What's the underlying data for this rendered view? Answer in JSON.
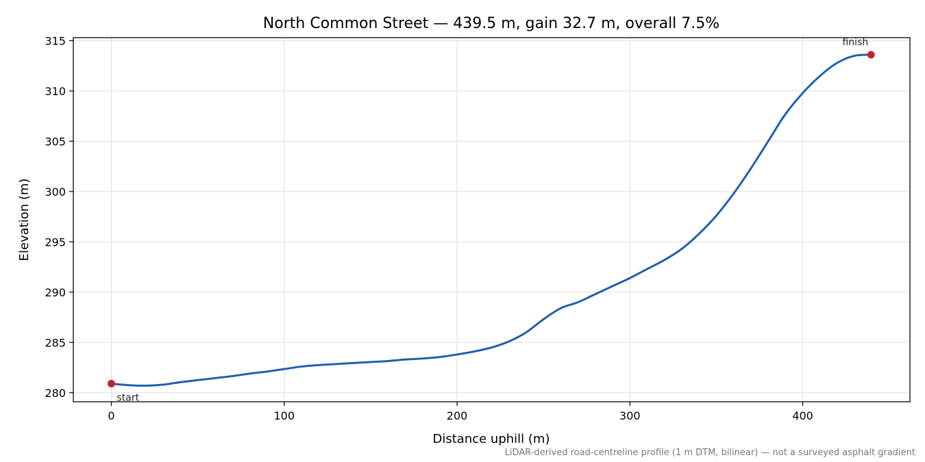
{
  "chart_data": {
    "type": "line",
    "title": "North Common Street — 439.5 m, gain 32.7 m, overall 7.5%",
    "xlabel": "Distance uphill (m)",
    "ylabel": "Elevation (m)",
    "xlim": [
      -22,
      462
    ],
    "ylim": [
      279.1,
      315.3
    ],
    "xticks": [
      0,
      100,
      200,
      300,
      400
    ],
    "yticks": [
      280,
      285,
      290,
      295,
      300,
      305,
      310,
      315
    ],
    "grid": true,
    "color": "#1f5fad",
    "marker_color": "#c8202a",
    "series": [
      {
        "x": [
          0,
          10,
          20,
          30,
          40,
          50,
          60,
          70,
          80,
          90,
          100,
          110,
          120,
          130,
          140,
          150,
          160,
          170,
          180,
          190,
          200,
          210,
          220,
          230,
          240,
          250,
          260,
          270,
          280,
          290,
          300,
          310,
          320,
          330,
          340,
          350,
          360,
          370,
          380,
          390,
          400,
          410,
          420,
          430,
          439.5
        ],
        "y": [
          280.9,
          280.75,
          280.7,
          280.8,
          281.05,
          281.25,
          281.45,
          281.65,
          281.9,
          282.1,
          282.35,
          282.6,
          282.75,
          282.85,
          282.95,
          283.05,
          283.15,
          283.3,
          283.4,
          283.55,
          283.8,
          284.1,
          284.5,
          285.1,
          286.0,
          287.3,
          288.4,
          289.0,
          289.8,
          290.6,
          291.4,
          292.3,
          293.2,
          294.3,
          295.8,
          297.6,
          299.8,
          302.3,
          305.0,
          307.7,
          309.8,
          311.5,
          312.8,
          313.5,
          313.6
        ]
      }
    ],
    "annotations": [
      {
        "label": "start",
        "x": 0,
        "y": 280.9
      },
      {
        "label": "finish",
        "x": 439.5,
        "y": 313.6
      }
    ],
    "footnote": "LiDAR-derived road-centreline profile (1 m DTM, bilinear) — not a surveyed asphalt gradient"
  }
}
